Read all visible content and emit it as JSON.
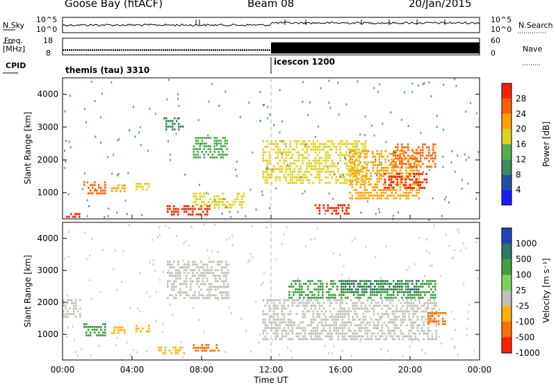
{
  "header": {
    "station": "Goose Bay (fitACF)",
    "beam": "Beam 08",
    "date": "20/Jan/2015"
  },
  "side_labels": {
    "nsky": "N.Sky",
    "nsearch": "N.Search",
    "freq": "Freq.",
    "freq_unit": "[MHz]",
    "nave": "Nave",
    "cpid": "CPID",
    "nsky_hi": "10^5",
    "nsky_lo": "10^0",
    "nsearch_hi": "10^5",
    "nsearch_lo": "10^0",
    "freq_hi": "18",
    "freq_lo": "8",
    "nave_hi": "60",
    "nave_lo": "0"
  },
  "cpid": [
    {
      "label": "themis (tau) 3310",
      "start_hour": 0
    },
    {
      "label": "icescon 1200",
      "start_hour": 12
    }
  ],
  "colors": {
    "power": [
      "#1a1aff",
      "#2050a0",
      "#3a8a5a",
      "#50b050",
      "#e0d020",
      "#ffa000",
      "#ff6000",
      "#ff2000"
    ],
    "velocity": [
      "#2040c0",
      "#2c7a60",
      "#40a040",
      "#80d060",
      "#c0c0b8",
      "#ffb000",
      "#ff7000",
      "#ff2000"
    ]
  },
  "chart_data": [
    {
      "type": "heatmap",
      "name": "power",
      "ylabel": "Slant Range [km]",
      "yticks": [
        "1000",
        "2000",
        "3000",
        "4000"
      ],
      "ylim": [
        200,
        4500
      ],
      "xlim": [
        0,
        24
      ],
      "colorbar_label": "Power [dB]",
      "colorbar_ticks": [
        "4",
        "8",
        "12",
        "16",
        "20",
        "24",
        "28"
      ],
      "regions": [
        {
          "x": [
            0.2,
            1.0
          ],
          "y": [
            260,
            380
          ],
          "value": 28
        },
        {
          "x": [
            1.2,
            2.5
          ],
          "y": [
            1000,
            1350
          ],
          "value": 24
        },
        {
          "x": [
            2.8,
            3.6
          ],
          "y": [
            1050,
            1250
          ],
          "value": 20
        },
        {
          "x": [
            4.2,
            5.0
          ],
          "y": [
            1050,
            1300
          ],
          "value": 16
        },
        {
          "x": [
            6.0,
            8.5
          ],
          "y": [
            300,
            620
          ],
          "value": 28
        },
        {
          "x": [
            7.5,
            10.5
          ],
          "y": [
            500,
            1000
          ],
          "value": 16
        },
        {
          "x": [
            5.8,
            7.0
          ],
          "y": [
            2900,
            3300
          ],
          "value": 8
        },
        {
          "x": [
            7.5,
            9.5
          ],
          "y": [
            2100,
            2700
          ],
          "value": 12
        },
        {
          "x": [
            11.5,
            17.5
          ],
          "y": [
            1300,
            2600
          ],
          "value": 16
        },
        {
          "x": [
            16.5,
            20.5
          ],
          "y": [
            800,
            2300
          ],
          "value": 20
        },
        {
          "x": [
            18.5,
            21.0
          ],
          "y": [
            1100,
            1600
          ],
          "value": 28
        },
        {
          "x": [
            19.0,
            21.5
          ],
          "y": [
            1800,
            2500
          ],
          "value": 24
        },
        {
          "x": [
            14.5,
            16.5
          ],
          "y": [
            350,
            650
          ],
          "value": 28
        }
      ]
    },
    {
      "type": "heatmap",
      "name": "velocity",
      "ylabel": "Slant Range [km]",
      "xlabel": "Time UT",
      "yticks": [
        "1000",
        "2000",
        "3000",
        "4000"
      ],
      "xticks": [
        "00:00",
        "04:00",
        "08:00",
        "12:00",
        "16:00",
        "20:00",
        "00:00"
      ],
      "ylim": [
        200,
        4500
      ],
      "xlim": [
        0,
        24
      ],
      "colorbar_label": "Velocity [m s⁻¹]",
      "colorbar_ticks": [
        "1000",
        "500",
        "100",
        "25",
        "-25",
        "-100",
        "-500",
        "-1000"
      ],
      "regions": [
        {
          "x": [
            0.0,
            1.0
          ],
          "y": [
            1500,
            2100
          ],
          "value": 0
        },
        {
          "x": [
            1.2,
            2.5
          ],
          "y": [
            1000,
            1350
          ],
          "value": 100
        },
        {
          "x": [
            2.8,
            3.6
          ],
          "y": [
            1050,
            1250
          ],
          "value": -100
        },
        {
          "x": [
            4.2,
            5.0
          ],
          "y": [
            1050,
            1300
          ],
          "value": -100
        },
        {
          "x": [
            5.5,
            7.0
          ],
          "y": [
            400,
            620
          ],
          "value": -100
        },
        {
          "x": [
            7.5,
            9.0
          ],
          "y": [
            500,
            700
          ],
          "value": -500
        },
        {
          "x": [
            6.0,
            9.5
          ],
          "y": [
            2100,
            3300
          ],
          "value": 0
        },
        {
          "x": [
            11.5,
            21.5
          ],
          "y": [
            800,
            2100
          ],
          "value": 0
        },
        {
          "x": [
            13.0,
            21.5
          ],
          "y": [
            2100,
            2700
          ],
          "value": 100
        },
        {
          "x": [
            16.0,
            20.5
          ],
          "y": [
            2300,
            2700
          ],
          "value": 500
        },
        {
          "x": [
            21.0,
            22.0
          ],
          "y": [
            1300,
            1700
          ],
          "value": -500
        }
      ]
    }
  ]
}
